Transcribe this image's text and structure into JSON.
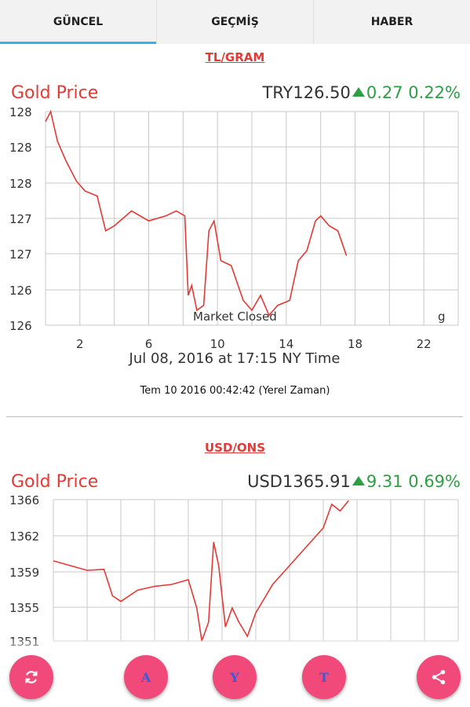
{
  "tabs": [
    {
      "label": "GÜNCEL",
      "active": true
    },
    {
      "label": "GEÇMİŞ",
      "active": false
    },
    {
      "label": "HABER",
      "active": false
    }
  ],
  "section1": {
    "header": "TL/GRAM",
    "title": "Gold Price",
    "currency_price": "TRY126.50",
    "change": "0.27",
    "change_pct": "0.22%",
    "y_ticks": [
      "128",
      "128",
      "128",
      "127",
      "127",
      "126",
      "126"
    ],
    "x_ticks": [
      "2",
      "6",
      "10",
      "14",
      "18",
      "22"
    ],
    "market_closed": "Market Closed",
    "watermark": "g",
    "datetime_caption": "Jul 08, 2016 at 17:15 NY Time",
    "local_time": "Tem 10 2016 00:42:42 (Yerel Zaman)"
  },
  "section2": {
    "header": "USD/ONS",
    "title": "Gold Price",
    "currency_price": "USD1365.91",
    "change": "9.31",
    "change_pct": "0.69%",
    "y_ticks": [
      "1366",
      "1362",
      "1359",
      "1355",
      "1351"
    ]
  },
  "fabs": [
    {
      "name": "refresh-button",
      "icon": "refresh-icon"
    },
    {
      "name": "a-button",
      "letter": "A"
    },
    {
      "name": "y-button",
      "letter": "Y"
    },
    {
      "name": "t-button",
      "letter": "T"
    },
    {
      "name": "share-button",
      "icon": "share-icon"
    }
  ],
  "colors": {
    "accent": "#33b5e5",
    "line": "#e53935",
    "up": "#2e9e44",
    "fab": "#f0497a"
  },
  "chart_data": [
    {
      "type": "line",
      "title": "",
      "xlabel": "Jul 08, 2016 at 17:15 NY Time",
      "ylabel": "",
      "xlim": [
        0,
        24
      ],
      "ylim": [
        125.9,
        128.05
      ],
      "x_ticks": [
        2,
        6,
        10,
        14,
        18,
        22
      ],
      "grid": true,
      "series": [
        {
          "x": [
            0,
            0.3,
            0.7,
            1.2,
            1.8,
            2.3,
            3.0,
            3.5,
            4.0,
            5.0,
            6.0,
            7.0,
            7.6,
            8.1,
            8.3,
            8.5,
            8.8,
            9.2,
            9.5,
            9.8,
            10.2,
            10.8,
            11.5,
            12.0,
            12.5,
            13.0,
            13.5,
            14.2,
            14.7,
            15.2,
            15.7,
            16.0,
            16.5,
            17.0,
            17.3,
            17.5
          ],
          "y": [
            127.95,
            128.05,
            127.75,
            127.55,
            127.35,
            127.25,
            127.2,
            126.85,
            126.9,
            127.05,
            126.95,
            127.0,
            127.05,
            127.0,
            126.2,
            126.3,
            126.05,
            126.1,
            126.85,
            126.95,
            126.55,
            126.5,
            126.15,
            126.05,
            126.2,
            126.0,
            126.1,
            126.15,
            126.55,
            126.65,
            126.95,
            127.0,
            126.9,
            126.85,
            126.7,
            126.6
          ]
        }
      ]
    },
    {
      "type": "line",
      "title": "",
      "xlabel": "",
      "ylabel": "",
      "xlim": [
        0,
        24
      ],
      "ylim": [
        1351,
        1366
      ],
      "grid": true,
      "series": [
        {
          "x": [
            0,
            1.0,
            2.0,
            3.0,
            3.5,
            4.0,
            5.0,
            6.0,
            7.0,
            8.0,
            8.5,
            8.8,
            9.2,
            9.5,
            9.8,
            10.2,
            10.6,
            11.0,
            11.5,
            12.0,
            12.5,
            13.0,
            14.0,
            15.0,
            16.0,
            16.5,
            17.0,
            17.5
          ],
          "y": [
            1359.5,
            1359.0,
            1358.5,
            1358.6,
            1355.8,
            1355.2,
            1356.4,
            1356.8,
            1357.0,
            1357.5,
            1354.5,
            1351.0,
            1353.0,
            1361.5,
            1359.0,
            1352.5,
            1354.5,
            1353.0,
            1351.5,
            1354.0,
            1355.5,
            1357.0,
            1359.0,
            1361.0,
            1363.0,
            1365.5,
            1364.8,
            1365.9
          ]
        }
      ]
    }
  ]
}
